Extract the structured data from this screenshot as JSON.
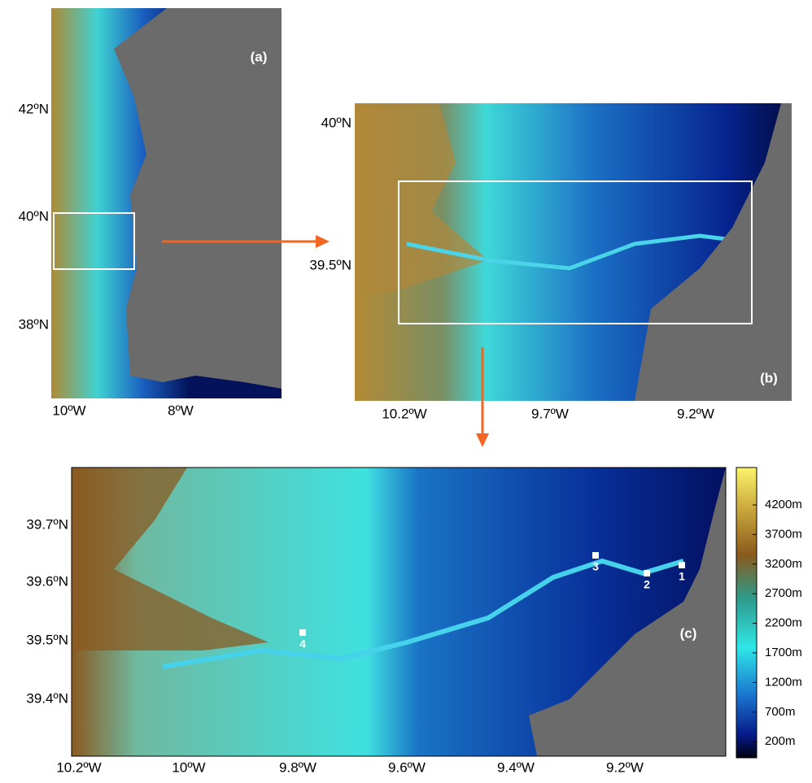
{
  "panels": {
    "a": {
      "label": "(a)",
      "yticks": [
        "42ºN",
        "40ºN",
        "38ºN"
      ],
      "xticks": [
        "10ºW",
        "8ºW"
      ]
    },
    "b": {
      "label": "(b)",
      "yticks": [
        "40ºN",
        "39.5ºN"
      ],
      "xticks": [
        "10.2ºW",
        "9.7ºW",
        "9.2ºW"
      ]
    },
    "c": {
      "label": "(c)",
      "yticks": [
        "39.7ºN",
        "39.6ºN",
        "39.5ºN",
        "39.4ºN"
      ],
      "xticks": [
        "10.2ºW",
        "10ºW",
        "9.8ºW",
        "9.6ºW",
        "9.4ºW",
        "9.2ºW"
      ],
      "stations": [
        "1",
        "2",
        "3",
        "4"
      ]
    }
  },
  "colorbar": {
    "labels": [
      "4200m",
      "3700m",
      "3200m",
      "2700m",
      "2200m",
      "1700m",
      "1200m",
      "700m",
      "200m"
    ]
  }
}
